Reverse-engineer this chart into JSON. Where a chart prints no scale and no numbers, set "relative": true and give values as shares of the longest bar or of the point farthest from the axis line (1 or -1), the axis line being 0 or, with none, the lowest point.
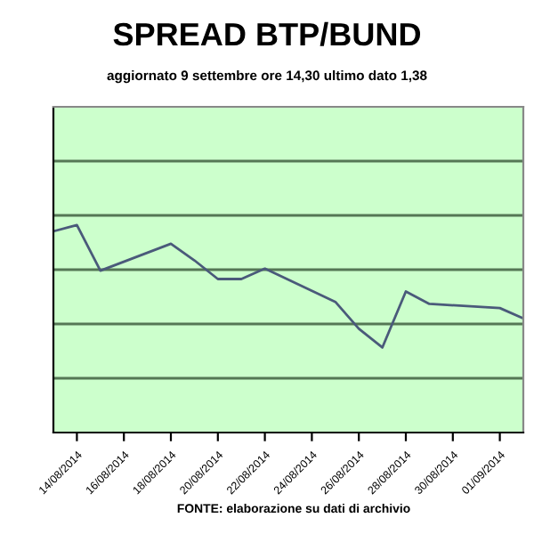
{
  "chart_data": {
    "type": "line",
    "title": "SPREAD BTP/BUND",
    "subtitle": "aggiornato 9 settembre ore 14,30 ultimo dato 1,38",
    "annotations": [
      "FONTE: elaborazione su dati di archivio"
    ],
    "relative": true,
    "x": [
      "2014-08-13",
      "2014-08-14",
      "2014-08-15",
      "2014-08-18",
      "2014-08-19",
      "2014-08-20",
      "2014-08-21",
      "2014-08-22",
      "2014-08-25",
      "2014-08-26",
      "2014-08-27",
      "2014-08-28",
      "2014-08-29",
      "2014-09-01",
      "2014-09-02"
    ],
    "xlim": [
      "2014-08-13",
      "2014-09-02"
    ],
    "xticks": [
      {
        "value": "2014-08-14",
        "label": "14/08/2014"
      },
      {
        "value": "2014-08-16",
        "label": "16/08/2014"
      },
      {
        "value": "2014-08-18",
        "label": "18/08/2014"
      },
      {
        "value": "2014-08-20",
        "label": "20/08/2014"
      },
      {
        "value": "2014-08-22",
        "label": "22/08/2014"
      },
      {
        "value": "2014-08-24",
        "label": "24/08/2014"
      },
      {
        "value": "2014-08-26",
        "label": "26/08/2014"
      },
      {
        "value": "2014-08-28",
        "label": "28/08/2014"
      },
      {
        "value": "2014-08-30",
        "label": "30/08/2014"
      },
      {
        "value": "2014-09-01",
        "label": "01/09/2014"
      }
    ],
    "series": [
      {
        "color": "#4a5a7a",
        "values": [
          0.97,
          1,
          0.78,
          0.91,
          0.83,
          0.74,
          0.74,
          0.79,
          0.63,
          0.5,
          0.41,
          0.68,
          0.62,
          0.6,
          0.55
        ]
      }
    ],
    "grid": "y",
    "marker": "none",
    "line_style": "solid"
  }
}
